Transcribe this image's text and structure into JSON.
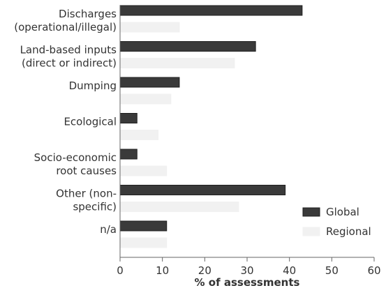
{
  "chart_data": {
    "type": "bar",
    "orientation": "horizontal",
    "categories": [
      "Discharges\n(operational/illegal)",
      "Land-based inputs\n(direct or indirect)",
      "Dumping",
      "Ecological",
      "Socio-economic\nroot causes",
      "Other (non-\nspecific)",
      "n/a"
    ],
    "series": [
      {
        "name": "Global",
        "values": [
          43,
          32,
          14,
          4,
          4,
          39,
          11
        ],
        "color": "#3a3a3a"
      },
      {
        "name": "Regional",
        "values": [
          14,
          27,
          12,
          9,
          11,
          28,
          11
        ],
        "color": "#f1f1f1"
      }
    ],
    "xlabel": "% of assessments",
    "ylabel": "",
    "xlim": [
      0,
      60
    ],
    "xticks": [
      0,
      10,
      20,
      30,
      40,
      50,
      60
    ],
    "grid": false,
    "legend_position": "bottom-right"
  }
}
